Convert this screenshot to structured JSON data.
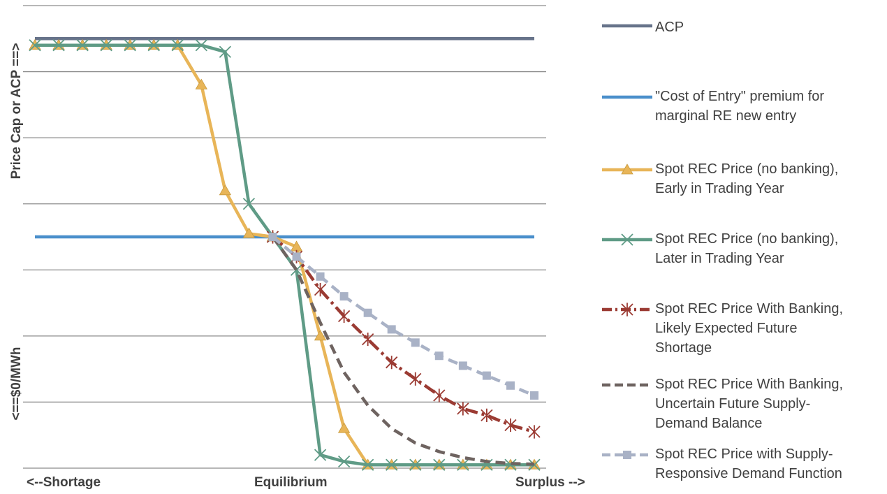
{
  "chart_data": {
    "type": "line",
    "title": "",
    "ylabel_top": "Price Cap or ACP ==>",
    "ylabel_bottom": "<==$0/MWh",
    "x_tick_labels": {
      "left": "<--Shortage",
      "center": "Equilibrium",
      "right": "Surplus  -->"
    },
    "x": [
      1,
      2,
      3,
      4,
      5,
      6,
      7,
      8,
      9,
      10,
      11,
      12,
      13,
      14,
      15,
      16,
      17,
      18,
      19,
      20,
      21,
      22
    ],
    "ylim": [
      0,
      7
    ],
    "grid": true,
    "legend_position": "right",
    "series": [
      {
        "name": "ACP",
        "style": "solid",
        "marker": "none",
        "color": "#67738A",
        "values": [
          6.5,
          6.5,
          6.5,
          6.5,
          6.5,
          6.5,
          6.5,
          6.5,
          6.5,
          6.5,
          6.5,
          6.5,
          6.5,
          6.5,
          6.5,
          6.5,
          6.5,
          6.5,
          6.5,
          6.5,
          6.5,
          6.5
        ]
      },
      {
        "name": "\"Cost of Entry\" premium for marginal RE new entry",
        "style": "solid",
        "marker": "none",
        "color": "#4A8FCB",
        "values": [
          3.5,
          3.5,
          3.5,
          3.5,
          3.5,
          3.5,
          3.5,
          3.5,
          3.5,
          3.5,
          3.5,
          3.5,
          3.5,
          3.5,
          3.5,
          3.5,
          3.5,
          3.5,
          3.5,
          3.5,
          3.5,
          3.5
        ]
      },
      {
        "name": "Spot REC Price (no banking), Early in Trading Year",
        "style": "solid",
        "marker": "triangle",
        "color": "#E8B558",
        "values": [
          6.4,
          6.4,
          6.4,
          6.4,
          6.4,
          6.4,
          6.4,
          5.8,
          4.2,
          3.55,
          3.5,
          3.35,
          2.0,
          0.6,
          0.05,
          0.05,
          0.05,
          0.05,
          0.05,
          0.05,
          0.05,
          0.05
        ]
      },
      {
        "name": "Spot REC Price (no banking), Later in Trading Year",
        "style": "solid",
        "marker": "x",
        "color": "#5F9B86",
        "values": [
          6.4,
          6.4,
          6.4,
          6.4,
          6.4,
          6.4,
          6.4,
          6.4,
          6.3,
          4.0,
          3.5,
          3.0,
          0.2,
          0.1,
          0.05,
          0.05,
          0.05,
          0.05,
          0.05,
          0.05,
          0.05,
          0.05
        ]
      },
      {
        "name": "Spot REC Price With Banking, Likely Expected Future Shortage",
        "style": "dash-dot",
        "marker": "asterisk",
        "color": "#9B3B33",
        "values": [
          null,
          null,
          null,
          null,
          null,
          null,
          null,
          null,
          null,
          null,
          3.5,
          3.2,
          2.7,
          2.3,
          1.95,
          1.6,
          1.35,
          1.1,
          0.9,
          0.8,
          0.65,
          0.55
        ]
      },
      {
        "name": "Spot REC Price With Banking, Uncertain Future Supply-Demand Balance",
        "style": "dashed",
        "marker": "none",
        "color": "#6E6360",
        "values": [
          null,
          null,
          null,
          null,
          null,
          null,
          null,
          null,
          null,
          null,
          3.5,
          3.0,
          2.2,
          1.45,
          0.95,
          0.6,
          0.38,
          0.25,
          0.16,
          0.1,
          0.07,
          0.06
        ]
      },
      {
        "name": "Spot REC Price with Supply-Responsive Demand Function",
        "style": "dashed",
        "marker": "square",
        "color": "#A9B2C6",
        "values": [
          null,
          null,
          null,
          null,
          null,
          null,
          null,
          null,
          null,
          null,
          3.5,
          3.2,
          2.9,
          2.6,
          2.35,
          2.1,
          1.9,
          1.7,
          1.55,
          1.4,
          1.25,
          1.1
        ]
      }
    ]
  }
}
